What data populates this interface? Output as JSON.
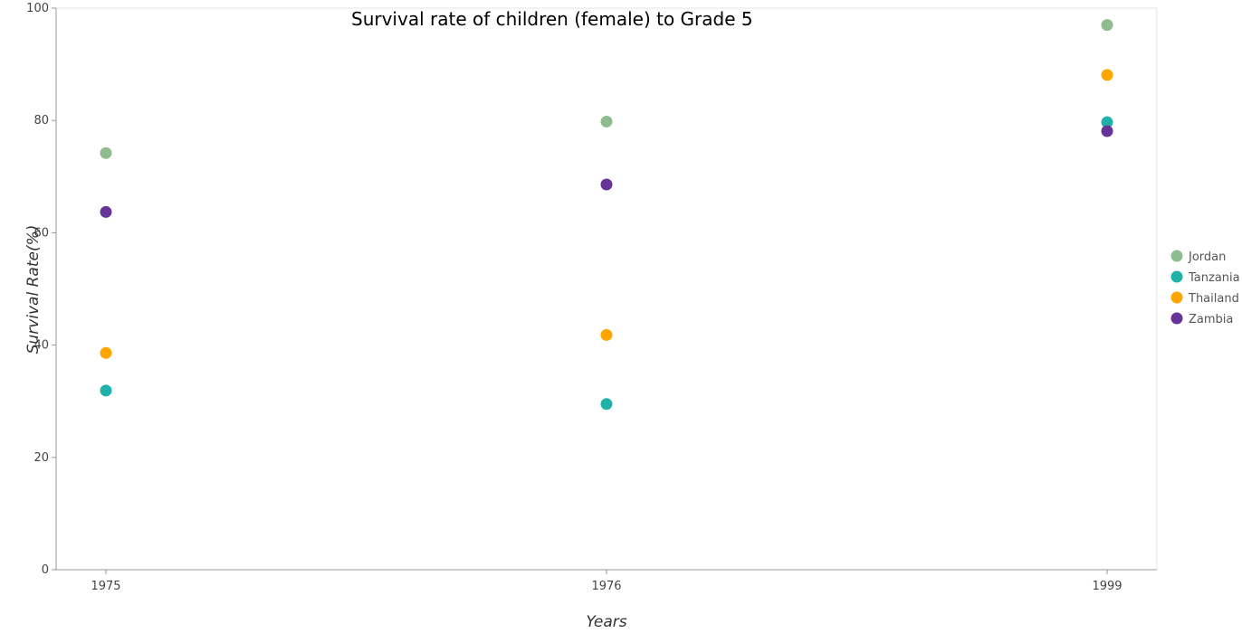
{
  "chart_data": {
    "type": "scatter",
    "title": "Survival rate of children (female) to Grade 5",
    "xlabel": "Years",
    "ylabel": "Survival Rate(%)",
    "categories": [
      "1975",
      "1976",
      "1999"
    ],
    "ylim": [
      0,
      100
    ],
    "yticks": [
      0,
      20,
      40,
      60,
      80,
      100
    ],
    "grid": false,
    "legend_position": "right",
    "series": [
      {
        "name": "Jordan",
        "color": "#8fbc8f",
        "values": [
          74.2,
          79.8,
          97.0
        ]
      },
      {
        "name": "Tanzania",
        "color": "#20b2aa",
        "values": [
          31.9,
          29.5,
          79.7
        ]
      },
      {
        "name": "Thailand",
        "color": "#ffa500",
        "values": [
          38.6,
          41.8,
          88.1
        ]
      },
      {
        "name": "Zambia",
        "color": "#663399",
        "values": [
          63.7,
          68.6,
          78.1
        ]
      }
    ]
  }
}
